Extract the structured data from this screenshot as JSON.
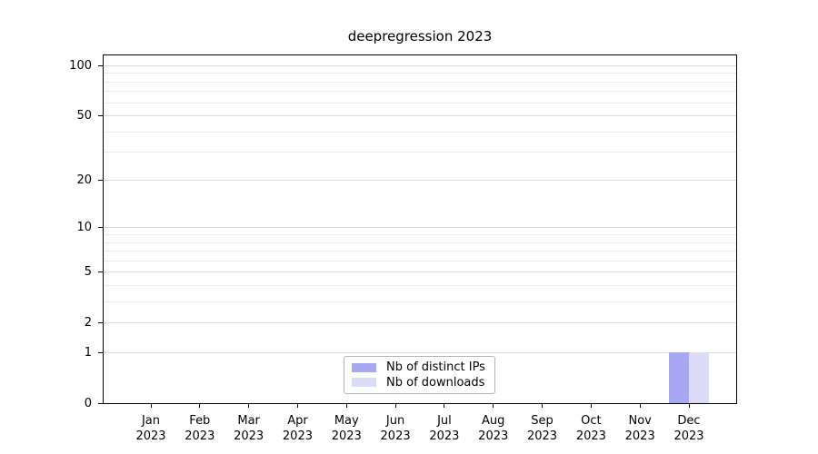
{
  "title": "deepregression 2023",
  "chart_data": {
    "type": "bar",
    "title": "deepregression 2023",
    "categories": [
      "Jan",
      "Feb",
      "Mar",
      "Apr",
      "May",
      "Jun",
      "Jul",
      "Aug",
      "Sep",
      "Oct",
      "Nov",
      "Dec"
    ],
    "x_tick_year": "2023",
    "series": [
      {
        "name": "Nb of distinct IPs",
        "color": "#a8a8f2",
        "values": [
          0,
          0,
          0,
          0,
          0,
          0,
          0,
          0,
          0,
          0,
          0,
          1
        ]
      },
      {
        "name": "Nb of downloads",
        "color": "#dcdcf7",
        "values": [
          0,
          0,
          0,
          0,
          0,
          0,
          0,
          0,
          0,
          0,
          0,
          1
        ]
      }
    ],
    "xlabel": "",
    "ylabel": "",
    "yscale": "log1p",
    "ylim": [
      0,
      117
    ],
    "y_major_ticks": [
      0,
      1,
      2,
      5,
      10,
      20,
      50,
      100
    ],
    "y_minor_ticks": [
      3,
      4,
      6,
      7,
      8,
      9,
      30,
      40,
      60,
      70,
      80,
      90
    ],
    "grid": "horizontal",
    "legend_position": "lower-center-inside"
  },
  "colors": {
    "background": "#ffffff",
    "spine": "#000000",
    "major_grid": "#d8d8d8",
    "minor_grid": "#ebebeb",
    "bar_distinct_ips": "#a8a8f2",
    "bar_downloads": "#dcdcf7",
    "legend_border": "#b4b4b4"
  }
}
